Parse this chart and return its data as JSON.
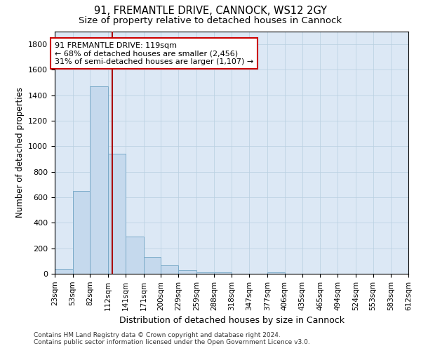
{
  "title1": "91, FREMANTLE DRIVE, CANNOCK, WS12 2GY",
  "title2": "Size of property relative to detached houses in Cannock",
  "xlabel": "Distribution of detached houses by size in Cannock",
  "ylabel": "Number of detached properties",
  "annotation_line1": "91 FREMANTLE DRIVE: 119sqm",
  "annotation_line2": "← 68% of detached houses are smaller (2,456)",
  "annotation_line3": "31% of semi-detached houses are larger (1,107) →",
  "property_size": 119,
  "bin_edges": [
    23,
    53,
    82,
    112,
    141,
    171,
    200,
    229,
    259,
    288,
    318,
    347,
    377,
    406,
    435,
    465,
    494,
    524,
    553,
    583,
    612
  ],
  "bar_heights": [
    40,
    650,
    1470,
    940,
    290,
    130,
    65,
    25,
    10,
    10,
    0,
    0,
    10,
    0,
    0,
    0,
    0,
    0,
    0,
    0
  ],
  "bar_color": "#c5d9ed",
  "bar_edge_color": "#7aaac8",
  "vline_color": "#aa0000",
  "vline_x": 119,
  "annotation_box_color": "#cc0000",
  "bg_color": "#dce8f5",
  "background_color": "#ffffff",
  "grid_color": "#b8cfe0",
  "ylim": [
    0,
    1900
  ],
  "yticks": [
    0,
    200,
    400,
    600,
    800,
    1000,
    1200,
    1400,
    1600,
    1800
  ],
  "footer_line1": "Contains HM Land Registry data © Crown copyright and database right 2024.",
  "footer_line2": "Contains public sector information licensed under the Open Government Licence v3.0."
}
